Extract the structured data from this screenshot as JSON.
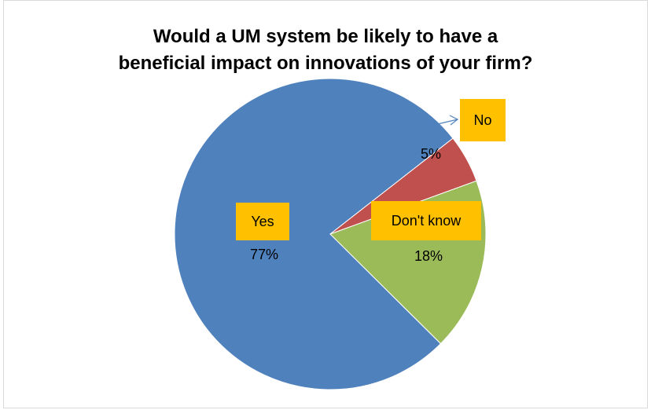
{
  "chart_data": {
    "type": "pie",
    "title": "Would a UM system be likely to have a beneficial impact on innovations of your firm?",
    "title_lines": [
      "Would a UM system be likely to have a",
      "beneficial impact on innovations of your firm?"
    ],
    "slices": [
      {
        "label": "Yes",
        "value": 77,
        "value_label": "77%",
        "color": "#4f81bd"
      },
      {
        "label": "No",
        "value": 5,
        "value_label": "5%",
        "color": "#c0504d"
      },
      {
        "label": "Don't know",
        "value": 18,
        "value_label": "18%",
        "color": "#9bbb59"
      }
    ],
    "label_box_color": "#ffc000",
    "legend": "none"
  }
}
